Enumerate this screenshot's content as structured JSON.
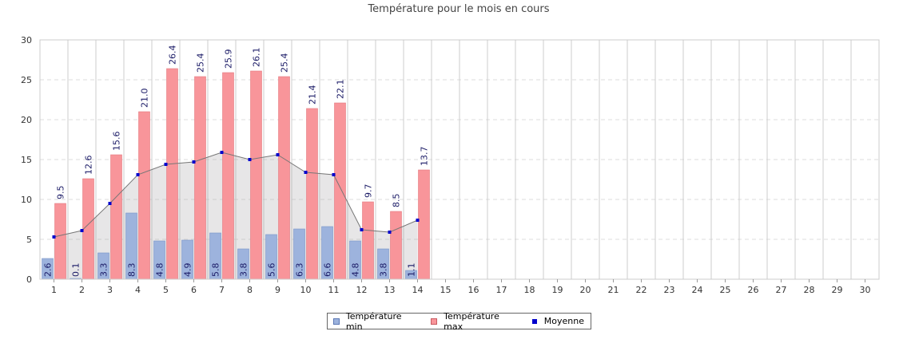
{
  "chart_data": {
    "type": "bar",
    "title": "Température pour le mois en cours",
    "xlabel": "",
    "ylabel": "",
    "ylim": [
      0,
      30
    ],
    "yticks": [
      0,
      5,
      10,
      15,
      20,
      25,
      30
    ],
    "categories": [
      "1",
      "2",
      "3",
      "4",
      "5",
      "6",
      "7",
      "8",
      "9",
      "10",
      "11",
      "12",
      "13",
      "14",
      "15",
      "16",
      "17",
      "18",
      "19",
      "20",
      "21",
      "22",
      "23",
      "24",
      "25",
      "26",
      "27",
      "28",
      "29",
      "30"
    ],
    "series": [
      {
        "name": "Température min",
        "type": "bar",
        "color": "#9db3dd",
        "values": [
          2.6,
          0.1,
          3.3,
          8.3,
          4.8,
          4.9,
          5.8,
          3.8,
          5.6,
          6.3,
          6.6,
          4.8,
          3.8,
          1.1,
          null,
          null,
          null,
          null,
          null,
          null,
          null,
          null,
          null,
          null,
          null,
          null,
          null,
          null,
          null,
          null
        ]
      },
      {
        "name": "Température max",
        "type": "bar",
        "color": "#f8959a",
        "values": [
          9.5,
          12.6,
          15.6,
          21.0,
          26.4,
          25.4,
          25.9,
          26.1,
          25.4,
          21.4,
          22.1,
          9.7,
          8.5,
          13.7,
          null,
          null,
          null,
          null,
          null,
          null,
          null,
          null,
          null,
          null,
          null,
          null,
          null,
          null,
          null,
          null
        ]
      },
      {
        "name": "Moyenne",
        "type": "area-line",
        "color": "#0000cc",
        "values": [
          5.3,
          6.1,
          9.5,
          13.1,
          14.4,
          14.7,
          15.9,
          15.0,
          15.6,
          13.4,
          13.1,
          6.2,
          5.9,
          7.4,
          null,
          null,
          null,
          null,
          null,
          null,
          null,
          null,
          null,
          null,
          null,
          null,
          null,
          null,
          null,
          null
        ]
      }
    ],
    "grid": true,
    "legend": "bottom"
  },
  "legend": {
    "min_label": "Température min",
    "max_label": "Température max",
    "avg_label": "Moyenne"
  }
}
